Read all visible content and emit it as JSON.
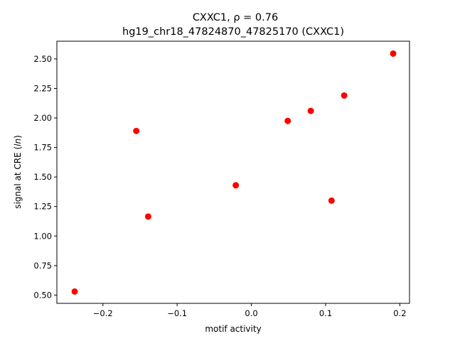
{
  "chart_data": {
    "type": "scatter",
    "title_line1": "CXXC1, ρ = 0.76",
    "title_line2": "hg19_chr18_47824870_47825170 (CXXC1)",
    "xlabel": "motif activity",
    "ylabel": "signal at CRE (ln)",
    "xlim": [
      -0.262,
      0.213
    ],
    "ylim": [
      0.43,
      2.65
    ],
    "xticks": [
      -0.2,
      -0.1,
      0.0,
      0.1,
      0.2
    ],
    "xtick_labels": [
      "−0.2",
      "−0.1",
      "0.0",
      "0.1",
      "0.2"
    ],
    "yticks": [
      0.5,
      0.75,
      1.0,
      1.25,
      1.5,
      1.75,
      2.0,
      2.25,
      2.5
    ],
    "ytick_labels": [
      "0.50",
      "0.75",
      "1.00",
      "1.25",
      "1.50",
      "1.75",
      "2.00",
      "2.25",
      "2.50"
    ],
    "grid": false,
    "marker_color": "#ff0000",
    "points": [
      {
        "x": -0.238,
        "y": 0.53
      },
      {
        "x": -0.155,
        "y": 1.89
      },
      {
        "x": -0.139,
        "y": 1.165
      },
      {
        "x": -0.021,
        "y": 1.43
      },
      {
        "x": 0.049,
        "y": 1.975
      },
      {
        "x": 0.08,
        "y": 2.06
      },
      {
        "x": 0.108,
        "y": 1.3
      },
      {
        "x": 0.125,
        "y": 2.19
      },
      {
        "x": 0.191,
        "y": 2.545
      }
    ]
  }
}
